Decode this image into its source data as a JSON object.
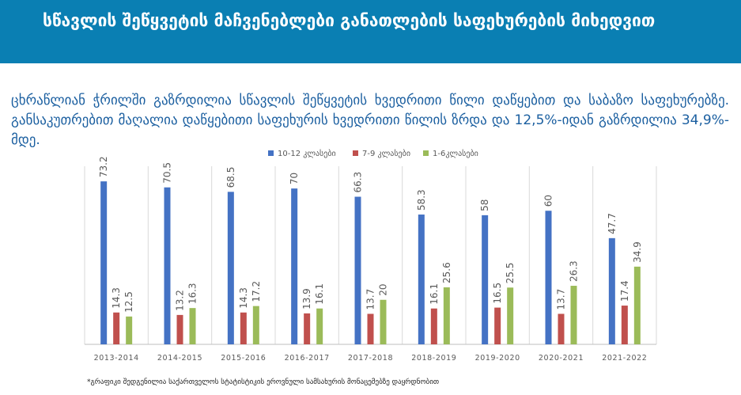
{
  "header": {
    "title": "სწავლის შეწყვეტის მაჩვენებლები განათლების საფეხურების მიხედვით"
  },
  "description": "ცხრაწლიან ჭრილში გაზრდილია სწავლის შეწყვეტის ხვედრითი წილი დაწყებით და საბაზო საფეხურებზე. განსაკუთრებით მაღალია დაწყებითი საფეხურის ხვედრითი წილის ზრდა და 12,5%-იდან გაზრდილია 34,9%-მდე.",
  "footnote": "*გრაფიკი შედგენილია საქართველოს სტატისტიკის ეროვნული სამსახურის მონაცემებზე დაყრდნობით",
  "colors": {
    "header_bg": "#0a7fb3",
    "description_text": "#1b5fa0",
    "grid": "#d9d9d9",
    "axis": "#bfbfbf",
    "label": "#595959"
  },
  "chart_data": {
    "type": "bar",
    "categories": [
      "2013-2014",
      "2014-2015",
      "2015-2016",
      "2016-2017",
      "2017-2018",
      "2018-2019",
      "2019-2020",
      "2020-2021",
      "2021-2022"
    ],
    "series": [
      {
        "name": "10-12 კლასები",
        "color": "#4472c4",
        "values": [
          73.2,
          70.5,
          68.5,
          70,
          66.3,
          58.3,
          58,
          60,
          47.7
        ]
      },
      {
        "name": "7-9 კლასები",
        "color": "#c0504d",
        "values": [
          14.3,
          13.2,
          14.3,
          13.9,
          13.7,
          16.1,
          16.5,
          13.7,
          17.4
        ]
      },
      {
        "name": "1-6კლასები",
        "color": "#9bbb59",
        "values": [
          12.5,
          16.3,
          17.2,
          16.1,
          20,
          25.6,
          25.5,
          26.3,
          34.9
        ]
      }
    ],
    "ylim": [
      0,
      80
    ],
    "grid": "vertical separators",
    "legend": "top-center",
    "title": "",
    "xlabel": "",
    "ylabel": ""
  }
}
